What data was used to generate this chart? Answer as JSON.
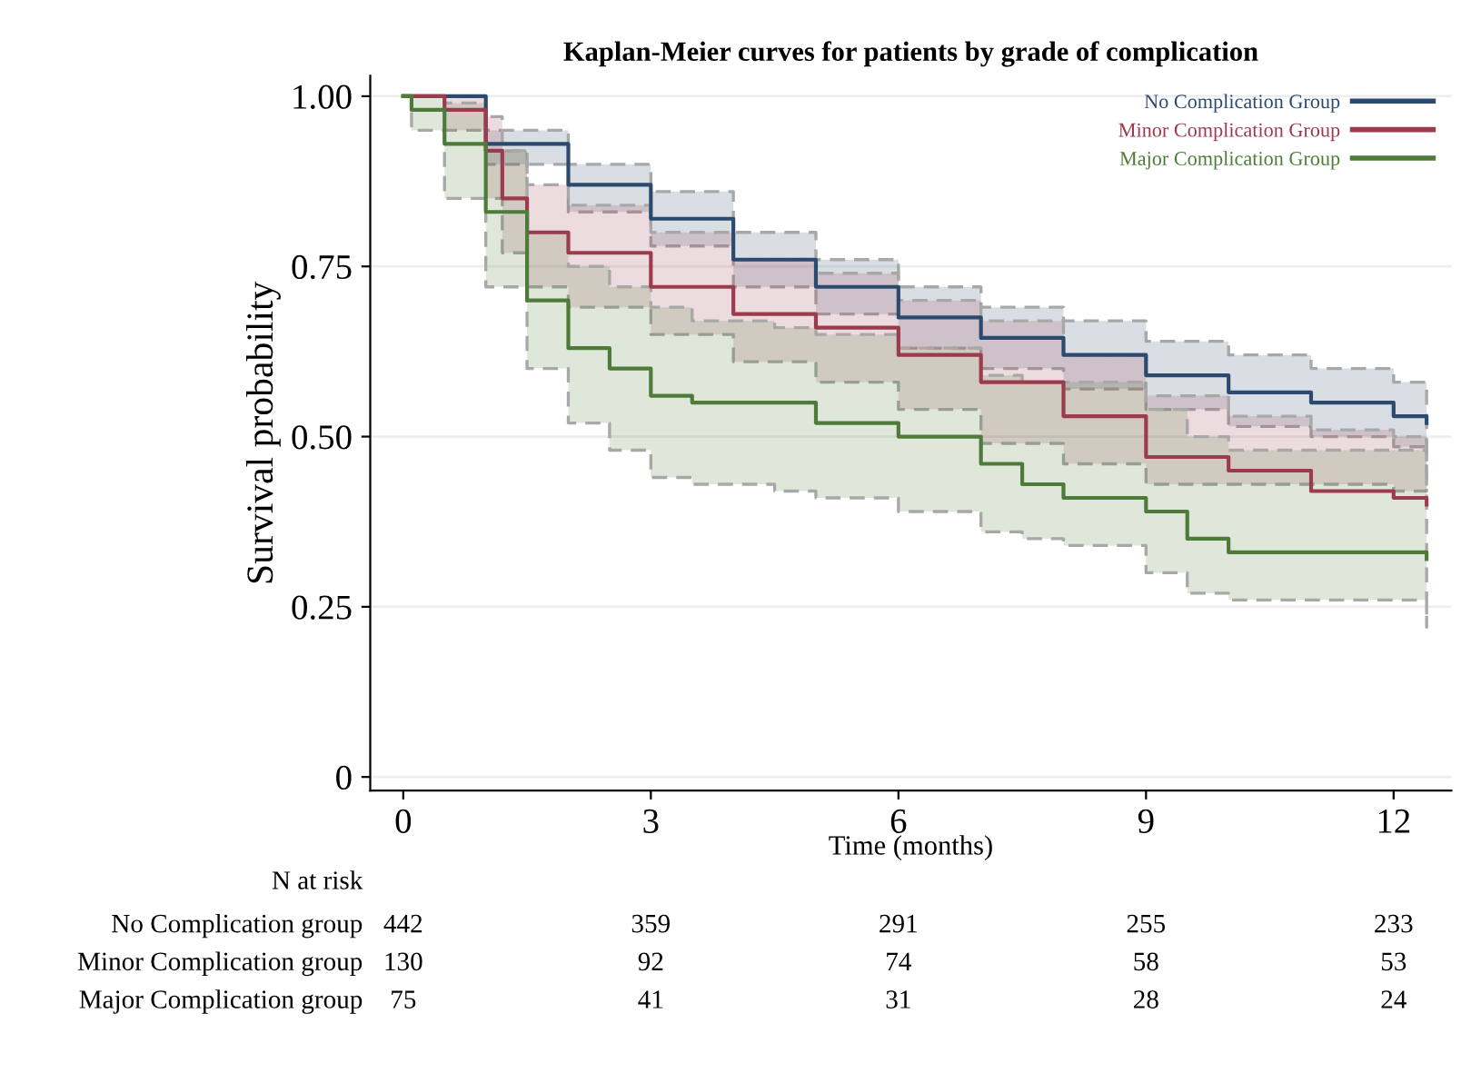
{
  "chart_data": {
    "type": "step",
    "title": "Kaplan-Meier curves for patients by grade of complication",
    "xlabel": "Time (months)",
    "ylabel": "Survival probability",
    "xlim": [
      -0.4,
      12.7
    ],
    "ylim": [
      -0.02,
      1.03
    ],
    "xticks": [
      0,
      3,
      6,
      9,
      12
    ],
    "yticks": [
      {
        "value": 0,
        "label": "0"
      },
      {
        "value": 0.25,
        "label": "0.25"
      },
      {
        "value": 0.5,
        "label": "0.50"
      },
      {
        "value": 0.75,
        "label": "0.75"
      },
      {
        "value": 1,
        "label": "1.00"
      }
    ],
    "grid": "y",
    "legend": "top right",
    "line_style": "solid",
    "series": [
      {
        "name": "No Complication Group",
        "color": "#2c4a6e",
        "x": [
          0,
          1,
          2,
          3,
          4,
          5,
          6,
          7,
          8,
          9,
          10,
          11,
          12,
          12.4
        ],
        "values": [
          1,
          0.93,
          0.87,
          0.82,
          0.76,
          0.72,
          0.675,
          0.645,
          0.62,
          0.59,
          0.565,
          0.55,
          0.53,
          0.52
        ],
        "upper": [
          1,
          0.95,
          0.9,
          0.86,
          0.8,
          0.76,
          0.72,
          0.69,
          0.67,
          0.64,
          0.62,
          0.6,
          0.58,
          0.57
        ],
        "lower": [
          1,
          0.9,
          0.83,
          0.78,
          0.72,
          0.68,
          0.63,
          0.6,
          0.57,
          0.54,
          0.515,
          0.5,
          0.485,
          0.475
        ]
      },
      {
        "name": "Minor Complication Group",
        "color": "#9c3b4b",
        "x": [
          0,
          0.5,
          1,
          1.2,
          1.5,
          2,
          3,
          4,
          5,
          6,
          7,
          8,
          9,
          10,
          11,
          12,
          12.4
        ],
        "values": [
          1,
          0.98,
          0.92,
          0.85,
          0.8,
          0.77,
          0.72,
          0.68,
          0.66,
          0.62,
          0.58,
          0.53,
          0.47,
          0.45,
          0.42,
          0.41,
          0.4
        ],
        "upper": [
          1,
          1,
          0.97,
          0.92,
          0.87,
          0.84,
          0.8,
          0.76,
          0.74,
          0.7,
          0.67,
          0.62,
          0.56,
          0.53,
          0.51,
          0.5,
          0.48
        ],
        "lower": [
          1,
          0.95,
          0.85,
          0.77,
          0.72,
          0.69,
          0.65,
          0.61,
          0.58,
          0.54,
          0.49,
          0.46,
          0.43,
          0.43,
          0.43,
          0.42,
          0.42
        ]
      },
      {
        "name": "Major Complication Group",
        "color": "#4e7a3a",
        "x": [
          0,
          0.1,
          0.5,
          1,
          1.5,
          2,
          2.5,
          3,
          3.5,
          4.5,
          5,
          6,
          7,
          7.5,
          8,
          9,
          9.5,
          10,
          12.4
        ],
        "values": [
          1,
          0.98,
          0.93,
          0.83,
          0.7,
          0.63,
          0.6,
          0.56,
          0.55,
          0.55,
          0.52,
          0.5,
          0.46,
          0.43,
          0.41,
          0.39,
          0.35,
          0.33,
          0.32
        ],
        "upper": [
          1,
          1,
          0.99,
          0.92,
          0.8,
          0.75,
          0.72,
          0.69,
          0.67,
          0.66,
          0.65,
          0.63,
          0.59,
          0.58,
          0.58,
          0.54,
          0.5,
          0.48,
          0.43
        ],
        "lower": [
          1,
          0.95,
          0.85,
          0.72,
          0.6,
          0.52,
          0.48,
          0.44,
          0.43,
          0.42,
          0.41,
          0.39,
          0.36,
          0.35,
          0.34,
          0.3,
          0.27,
          0.26,
          0.22
        ]
      }
    ],
    "annotations": [
      "N at risk",
      "No Complication group",
      "442",
      "359",
      "291",
      "255",
      "233",
      "Minor Complication group",
      "130",
      "92",
      "74",
      "58",
      "53",
      "Major Complication group",
      "75",
      "41",
      "31",
      "28",
      "24"
    ]
  }
}
